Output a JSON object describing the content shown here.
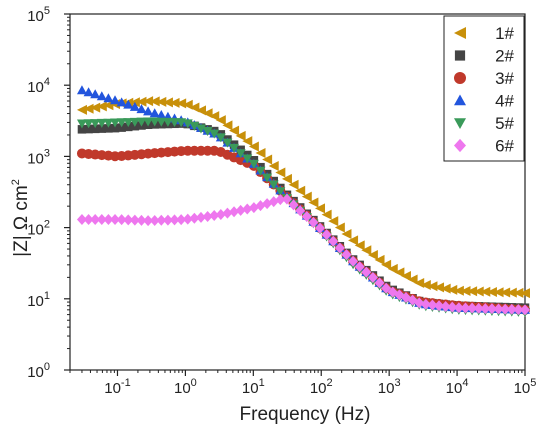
{
  "chart_data": {
    "type": "scatter",
    "xlabel": "Frequency (Hz)",
    "ylabel_main": "|Z| Ω cm",
    "ylabel_sup": "2",
    "x_scale": "log",
    "y_scale": "log",
    "xlim": [
      0.02,
      100000
    ],
    "ylim": [
      1,
      100000
    ],
    "x_ticks": [
      {
        "base": "10",
        "exp": "-1",
        "value": 0.1
      },
      {
        "base": "10",
        "exp": "0",
        "value": 1
      },
      {
        "base": "10",
        "exp": "1",
        "value": 10
      },
      {
        "base": "10",
        "exp": "2",
        "value": 100
      },
      {
        "base": "10",
        "exp": "3",
        "value": 1000
      },
      {
        "base": "10",
        "exp": "4",
        "value": 10000
      },
      {
        "base": "10",
        "exp": "5",
        "value": 100000
      }
    ],
    "y_ticks": [
      {
        "base": "10",
        "exp": "0",
        "value": 1
      },
      {
        "base": "10",
        "exp": "1",
        "value": 10
      },
      {
        "base": "10",
        "exp": "2",
        "value": 100
      },
      {
        "base": "10",
        "exp": "3",
        "value": 1000
      },
      {
        "base": "10",
        "exp": "4",
        "value": 10000
      },
      {
        "base": "10",
        "exp": "5",
        "value": 100000
      }
    ],
    "grid": false,
    "legend_position": "top-right",
    "series": [
      {
        "name": "1#",
        "color": "#c8900a",
        "marker": "triangle-left",
        "points": [
          [
            0.03,
            4500
          ],
          [
            0.1,
            5500
          ],
          [
            0.3,
            6000
          ],
          [
            1,
            5500
          ],
          [
            3,
            3500
          ],
          [
            10,
            1400
          ],
          [
            30,
            500
          ],
          [
            100,
            180
          ],
          [
            300,
            65
          ],
          [
            1000,
            28
          ],
          [
            3000,
            16
          ],
          [
            10000,
            13
          ],
          [
            100000,
            12
          ]
        ]
      },
      {
        "name": "2#",
        "color": "#444444",
        "marker": "square",
        "points": [
          [
            0.03,
            2400
          ],
          [
            0.1,
            2500
          ],
          [
            0.3,
            2800
          ],
          [
            1,
            2900
          ],
          [
            3,
            2200
          ],
          [
            10,
            900
          ],
          [
            30,
            300
          ],
          [
            100,
            100
          ],
          [
            300,
            35
          ],
          [
            1000,
            14
          ],
          [
            3000,
            9
          ],
          [
            10000,
            8
          ],
          [
            100000,
            7.5
          ]
        ]
      },
      {
        "name": "3#",
        "color": "#c0392b",
        "marker": "circle",
        "points": [
          [
            0.03,
            1100
          ],
          [
            0.1,
            1000
          ],
          [
            0.3,
            1100
          ],
          [
            1,
            1200
          ],
          [
            3,
            1200
          ],
          [
            10,
            750
          ],
          [
            30,
            280
          ],
          [
            100,
            95
          ],
          [
            300,
            33
          ],
          [
            1000,
            13
          ],
          [
            3000,
            9
          ],
          [
            10000,
            8
          ],
          [
            100000,
            7
          ]
        ]
      },
      {
        "name": "4#",
        "color": "#2255dd",
        "marker": "triangle-up",
        "points": [
          [
            0.03,
            8500
          ],
          [
            0.1,
            6000
          ],
          [
            0.3,
            4200
          ],
          [
            1,
            3100
          ],
          [
            3,
            2000
          ],
          [
            10,
            800
          ],
          [
            30,
            280
          ],
          [
            100,
            95
          ],
          [
            300,
            33
          ],
          [
            1000,
            13
          ],
          [
            3000,
            8.5
          ],
          [
            10000,
            7.5
          ],
          [
            100000,
            7
          ]
        ]
      },
      {
        "name": "5#",
        "color": "#3a9a5a",
        "marker": "triangle-down",
        "points": [
          [
            0.03,
            2900
          ],
          [
            0.1,
            3000
          ],
          [
            0.3,
            3100
          ],
          [
            1,
            3000
          ],
          [
            3,
            2000
          ],
          [
            10,
            800
          ],
          [
            30,
            270
          ],
          [
            100,
            90
          ],
          [
            300,
            30
          ],
          [
            1000,
            12
          ],
          [
            3000,
            8
          ],
          [
            10000,
            7
          ],
          [
            100000,
            6.5
          ]
        ]
      },
      {
        "name": "6#",
        "color": "#ee77ee",
        "marker": "diamond",
        "points": [
          [
            0.03,
            130
          ],
          [
            0.1,
            130
          ],
          [
            0.3,
            125
          ],
          [
            1,
            130
          ],
          [
            3,
            150
          ],
          [
            10,
            190
          ],
          [
            30,
            260
          ],
          [
            100,
            95
          ],
          [
            300,
            33
          ],
          [
            1000,
            13
          ],
          [
            3000,
            8.5
          ],
          [
            10000,
            7.5
          ],
          [
            100000,
            7
          ]
        ]
      }
    ]
  }
}
